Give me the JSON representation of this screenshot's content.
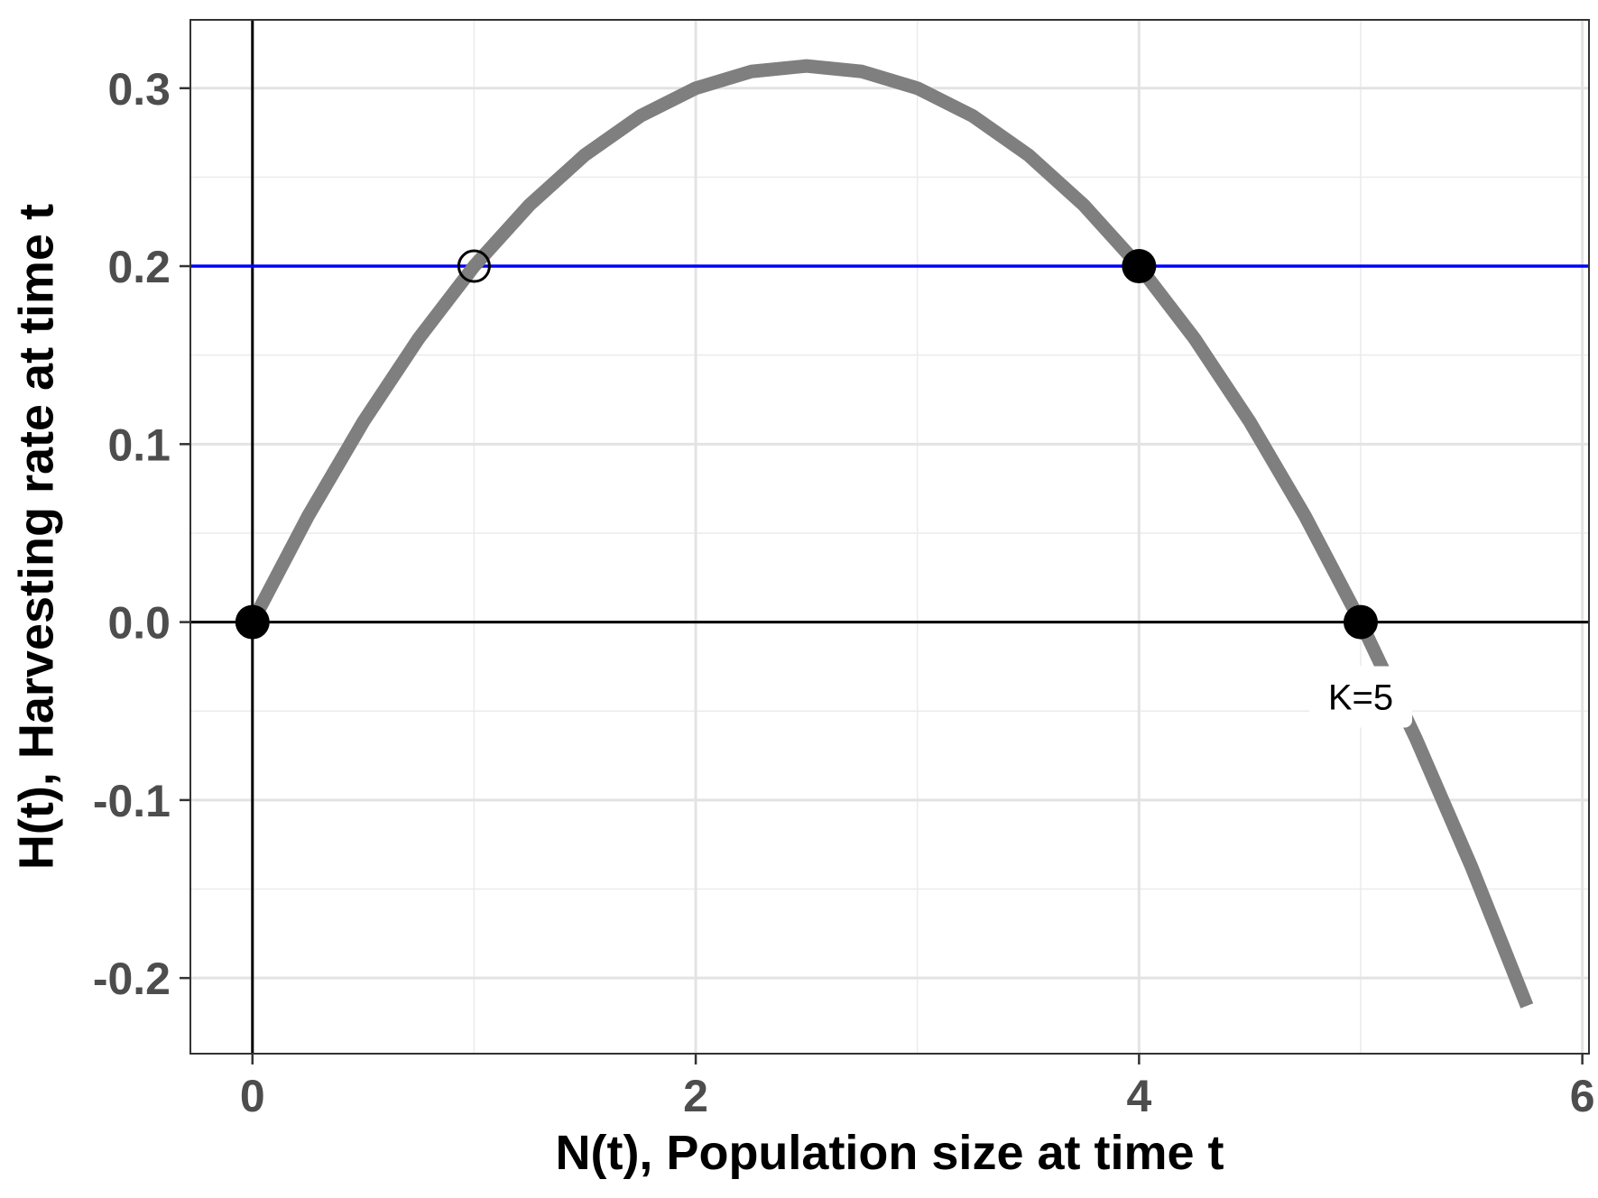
{
  "chart_data": {
    "type": "line",
    "title": "",
    "xlabel": "N(t), Population size at time t",
    "ylabel": "H(t), Harvesting rate at time t",
    "xlim": [
      -0.28,
      6.03
    ],
    "ylim": [
      -0.2425,
      0.3384
    ],
    "x_ticks": [
      0,
      2,
      4,
      6
    ],
    "x_tick_labels": [
      "0",
      "2",
      "4",
      "6"
    ],
    "y_ticks": [
      -0.2,
      -0.1,
      0.0,
      0.1,
      0.2,
      0.3
    ],
    "y_tick_labels": [
      "-0.2",
      "-0.1",
      "0.0",
      "0.1",
      "0.2",
      "0.3"
    ],
    "grid": true,
    "legend": "none",
    "curve": {
      "name": "",
      "color": "#7f7f7f",
      "x": [
        0,
        0.25,
        0.5,
        0.75,
        1.0,
        1.25,
        1.5,
        1.75,
        2.0,
        2.25,
        2.5,
        2.75,
        3.0,
        3.25,
        3.5,
        3.75,
        4.0,
        4.25,
        4.5,
        4.75,
        5.0,
        5.25,
        5.5,
        5.75
      ],
      "y": [
        0,
        0.059375,
        0.1125,
        0.159375,
        0.2,
        0.234375,
        0.2625,
        0.284375,
        0.3,
        0.309375,
        0.3125,
        0.309375,
        0.3,
        0.284375,
        0.2625,
        0.234375,
        0.2,
        0.159375,
        0.1125,
        0.059375,
        0,
        -0.065625,
        -0.1375,
        -0.215625
      ]
    },
    "harvest_line": {
      "y": 0.2,
      "color": "#0000ff"
    },
    "reference_lines": {
      "x": 0,
      "y": 0,
      "color": "#000000"
    },
    "points": [
      {
        "x": 0,
        "y": 0,
        "filled": true
      },
      {
        "x": 1,
        "y": 0.2,
        "filled": false
      },
      {
        "x": 4,
        "y": 0.2,
        "filled": true
      },
      {
        "x": 5,
        "y": 0,
        "filled": true
      }
    ],
    "annotations": [
      {
        "text": "K=5",
        "x": 5,
        "y": -0.042
      }
    ]
  }
}
